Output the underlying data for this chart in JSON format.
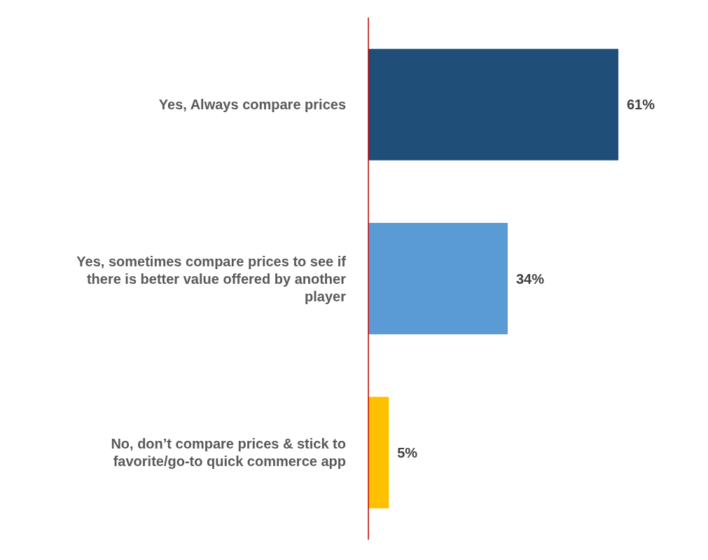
{
  "chart_data": {
    "type": "bar",
    "orientation": "horizontal",
    "categories": [
      "Yes, Always compare prices",
      "Yes, sometimes compare prices to see if there is better value offered by another player",
      "No, don’t compare prices & stick to favorite/go-to quick commerce app"
    ],
    "values": [
      61,
      34,
      5
    ],
    "colors": [
      "#1f4e79",
      "#5b9bd5",
      "#ffc000"
    ],
    "value_labels": [
      "61%",
      "34%",
      "5%"
    ],
    "grid": false,
    "legend": false
  }
}
